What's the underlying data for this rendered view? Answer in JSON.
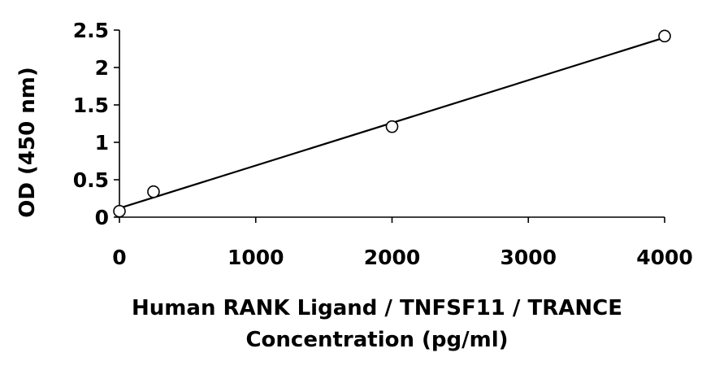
{
  "chart_data": {
    "type": "scatter",
    "title": "",
    "xlabel": [
      "Human RANK Ligand / TNFSF11 / TRANCE",
      "Concentration (pg/ml)"
    ],
    "ylabel": "OD (450 nm)",
    "xlim": [
      0,
      4000
    ],
    "ylim": [
      0,
      2.5
    ],
    "x_ticks": [
      0,
      1000,
      2000,
      3000,
      4000
    ],
    "y_ticks": [
      0,
      0.5,
      1,
      1.5,
      2,
      2.5
    ],
    "x_tick_labels": [
      "0",
      "1000",
      "2000",
      "3000",
      "4000"
    ],
    "y_tick_labels": [
      "0",
      "0.5",
      "1",
      "1.5",
      "2",
      "2.5"
    ],
    "grid": false,
    "legend": "none",
    "marker": "open-circle",
    "series": [
      {
        "points": [
          {
            "x": 0,
            "y": 0.08
          },
          {
            "x": 250,
            "y": 0.34
          },
          {
            "x": 2000,
            "y": 1.21
          },
          {
            "x": 4000,
            "y": 2.42
          }
        ]
      }
    ],
    "trendline": {
      "type": "linear",
      "from": {
        "x": 0,
        "y": 0.12
      },
      "to": {
        "x": 4000,
        "y": 2.4
      }
    },
    "colors": {
      "axis": "#000000",
      "marker_stroke": "#000000",
      "marker_fill": "#ffffff",
      "line": "#000000"
    }
  }
}
